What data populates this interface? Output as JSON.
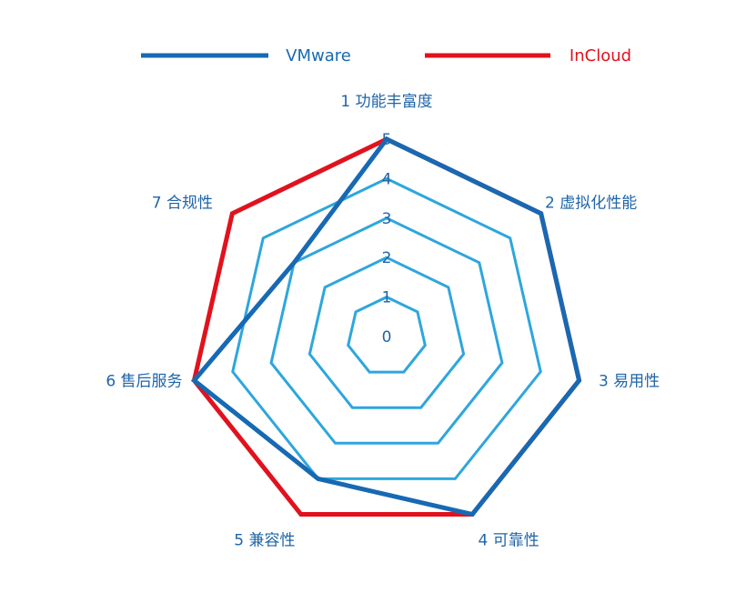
{
  "chart_data": {
    "type": "radar",
    "categories": [
      "1 功能丰富度",
      "2 虚拟化性能",
      "3 易用性",
      "4 可靠性",
      "5 兼容性",
      "6 售后服务",
      "7 合规性"
    ],
    "series": [
      {
        "name": "VMware",
        "color": "#1769b3",
        "values": [
          5,
          5,
          5,
          5,
          4,
          5,
          3
        ]
      },
      {
        "name": "InCloud",
        "color": "#e1121d",
        "values": [
          5,
          5,
          5,
          5,
          5,
          5,
          5
        ]
      }
    ],
    "rlim": [
      0,
      5
    ],
    "ticks": [
      "0",
      "1",
      "2",
      "3",
      "4",
      "5"
    ],
    "grid_color": "#2ea6dd",
    "label_color": "#1f65a8",
    "legend": "top"
  }
}
